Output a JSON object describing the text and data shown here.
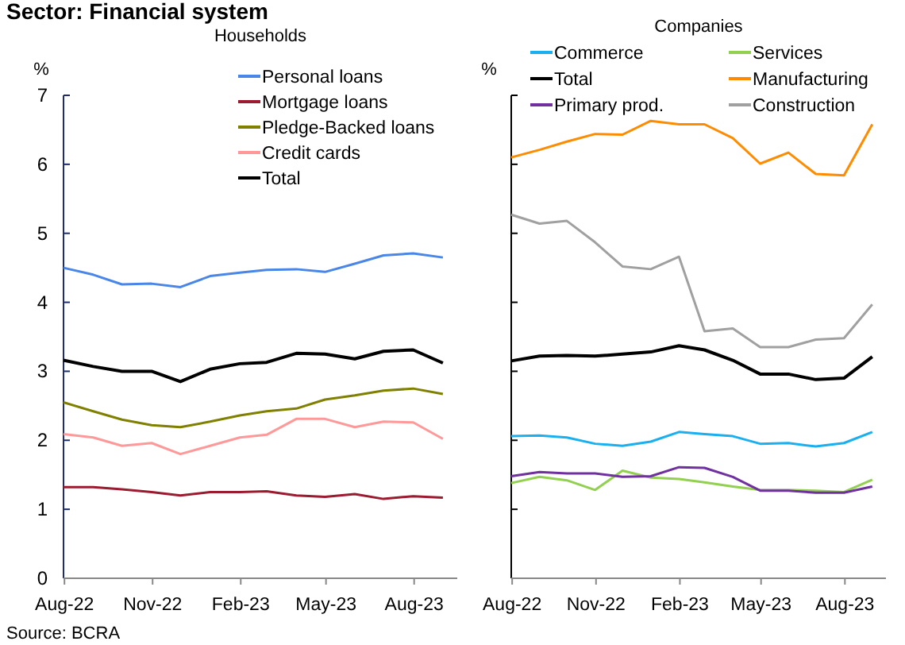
{
  "chart_data": [
    {
      "type": "line",
      "title": "Households",
      "ylabel": "%",
      "annotations": [
        "Sector: Financial system",
        "Source: BCRA"
      ],
      "legend": "top",
      "grid": false,
      "x": [
        "2022-07-31",
        "2022-08-31",
        "2022-09-30",
        "2022-10-31",
        "2022-11-30",
        "2022-12-31",
        "2023-01-31",
        "2023-02-28",
        "2023-03-31",
        "2023-04-30",
        "2023-05-31",
        "2023-06-30",
        "2023-07-31",
        "2023-08-31"
      ],
      "xlim": [
        "2022-07-31",
        "2023-09-15"
      ],
      "xticks": [
        {
          "value": "2022-08-01",
          "label": "Aug-22"
        },
        {
          "value": "2022-11-01",
          "label": "Nov-22"
        },
        {
          "value": "2023-02-01",
          "label": "Feb-23"
        },
        {
          "value": "2023-05-01",
          "label": "May-23"
        },
        {
          "value": "2023-08-01",
          "label": "Aug-23"
        }
      ],
      "ylim": [
        0,
        7
      ],
      "yticks": [
        0,
        1,
        2,
        3,
        4,
        5,
        6,
        7
      ],
      "series": [
        {
          "name": "Personal loans",
          "color": "#4a86e8",
          "values": [
            4.5,
            4.4,
            4.26,
            4.27,
            4.22,
            4.38,
            4.43,
            4.47,
            4.48,
            4.44,
            4.56,
            4.68,
            4.71,
            4.65
          ]
        },
        {
          "name": "Mortgage loans",
          "color": "#9b1b30",
          "values": [
            1.32,
            1.32,
            1.29,
            1.25,
            1.2,
            1.25,
            1.25,
            1.26,
            1.2,
            1.18,
            1.22,
            1.15,
            1.19,
            1.17
          ]
        },
        {
          "name": "Pledge-Backed loans",
          "color": "#808000",
          "values": [
            2.55,
            2.42,
            2.3,
            2.22,
            2.19,
            2.27,
            2.36,
            2.42,
            2.46,
            2.59,
            2.65,
            2.72,
            2.75,
            2.67
          ]
        },
        {
          "name": "Credit cards",
          "color": "#ff9999",
          "values": [
            2.09,
            2.04,
            1.92,
            1.96,
            1.8,
            1.92,
            2.04,
            2.08,
            2.31,
            2.31,
            2.19,
            2.27,
            2.26,
            2.02
          ]
        },
        {
          "name": "Total",
          "color": "#000000",
          "values": [
            3.16,
            3.07,
            3.0,
            3.0,
            2.85,
            3.03,
            3.11,
            3.13,
            3.26,
            3.25,
            3.18,
            3.29,
            3.31,
            3.12
          ]
        }
      ]
    },
    {
      "type": "line",
      "title": "Companies",
      "ylabel": "%",
      "legend": "top",
      "grid": false,
      "tick_labels": "x",
      "x": [
        "2022-07-31",
        "2022-08-31",
        "2022-09-30",
        "2022-10-31",
        "2022-11-30",
        "2022-12-31",
        "2023-01-31",
        "2023-02-28",
        "2023-03-31",
        "2023-04-30",
        "2023-05-31",
        "2023-06-30",
        "2023-07-31",
        "2023-08-31"
      ],
      "xlim": [
        "2022-07-31",
        "2023-09-15"
      ],
      "xticks": [
        {
          "value": "2022-08-01",
          "label": "Aug-22"
        },
        {
          "value": "2022-11-01",
          "label": "Nov-22"
        },
        {
          "value": "2023-02-01",
          "label": "Feb-23"
        },
        {
          "value": "2023-05-01",
          "label": "May-23"
        },
        {
          "value": "2023-08-01",
          "label": "Aug-23"
        }
      ],
      "ylim": [
        0,
        7
      ],
      "yticks": [
        0,
        1,
        2,
        3,
        4,
        5,
        6,
        7
      ],
      "series": [
        {
          "name": "Commerce",
          "color": "#1ab0f0",
          "values": [
            2.06,
            2.07,
            2.04,
            1.95,
            1.92,
            1.98,
            2.12,
            2.09,
            2.06,
            1.95,
            1.96,
            1.91,
            1.96,
            2.12
          ]
        },
        {
          "name": "Services",
          "color": "#92d050",
          "values": [
            1.38,
            1.47,
            1.42,
            1.28,
            1.56,
            1.46,
            1.44,
            1.39,
            1.33,
            1.28,
            1.28,
            1.27,
            1.25,
            1.43
          ]
        },
        {
          "name": "Total",
          "color": "#000000",
          "values": [
            3.15,
            3.22,
            3.23,
            3.22,
            3.25,
            3.28,
            3.37,
            3.31,
            3.16,
            2.96,
            2.96,
            2.88,
            2.9,
            3.21
          ]
        },
        {
          "name": "Manufacturing",
          "color": "#ff8c00",
          "values": [
            6.1,
            6.21,
            6.33,
            6.44,
            6.43,
            6.63,
            6.58,
            6.58,
            6.38,
            6.01,
            6.17,
            5.86,
            5.84,
            6.58
          ]
        },
        {
          "name": "Primary prod.",
          "color": "#7030a0",
          "values": [
            1.48,
            1.54,
            1.52,
            1.52,
            1.47,
            1.48,
            1.61,
            1.6,
            1.47,
            1.27,
            1.27,
            1.24,
            1.24,
            1.33
          ]
        },
        {
          "name": "Construction",
          "color": "#a0a0a0",
          "values": [
            5.27,
            5.14,
            5.18,
            4.87,
            4.52,
            4.48,
            4.66,
            3.58,
            3.62,
            3.35,
            3.35,
            3.46,
            3.48,
            3.97
          ]
        }
      ]
    }
  ]
}
